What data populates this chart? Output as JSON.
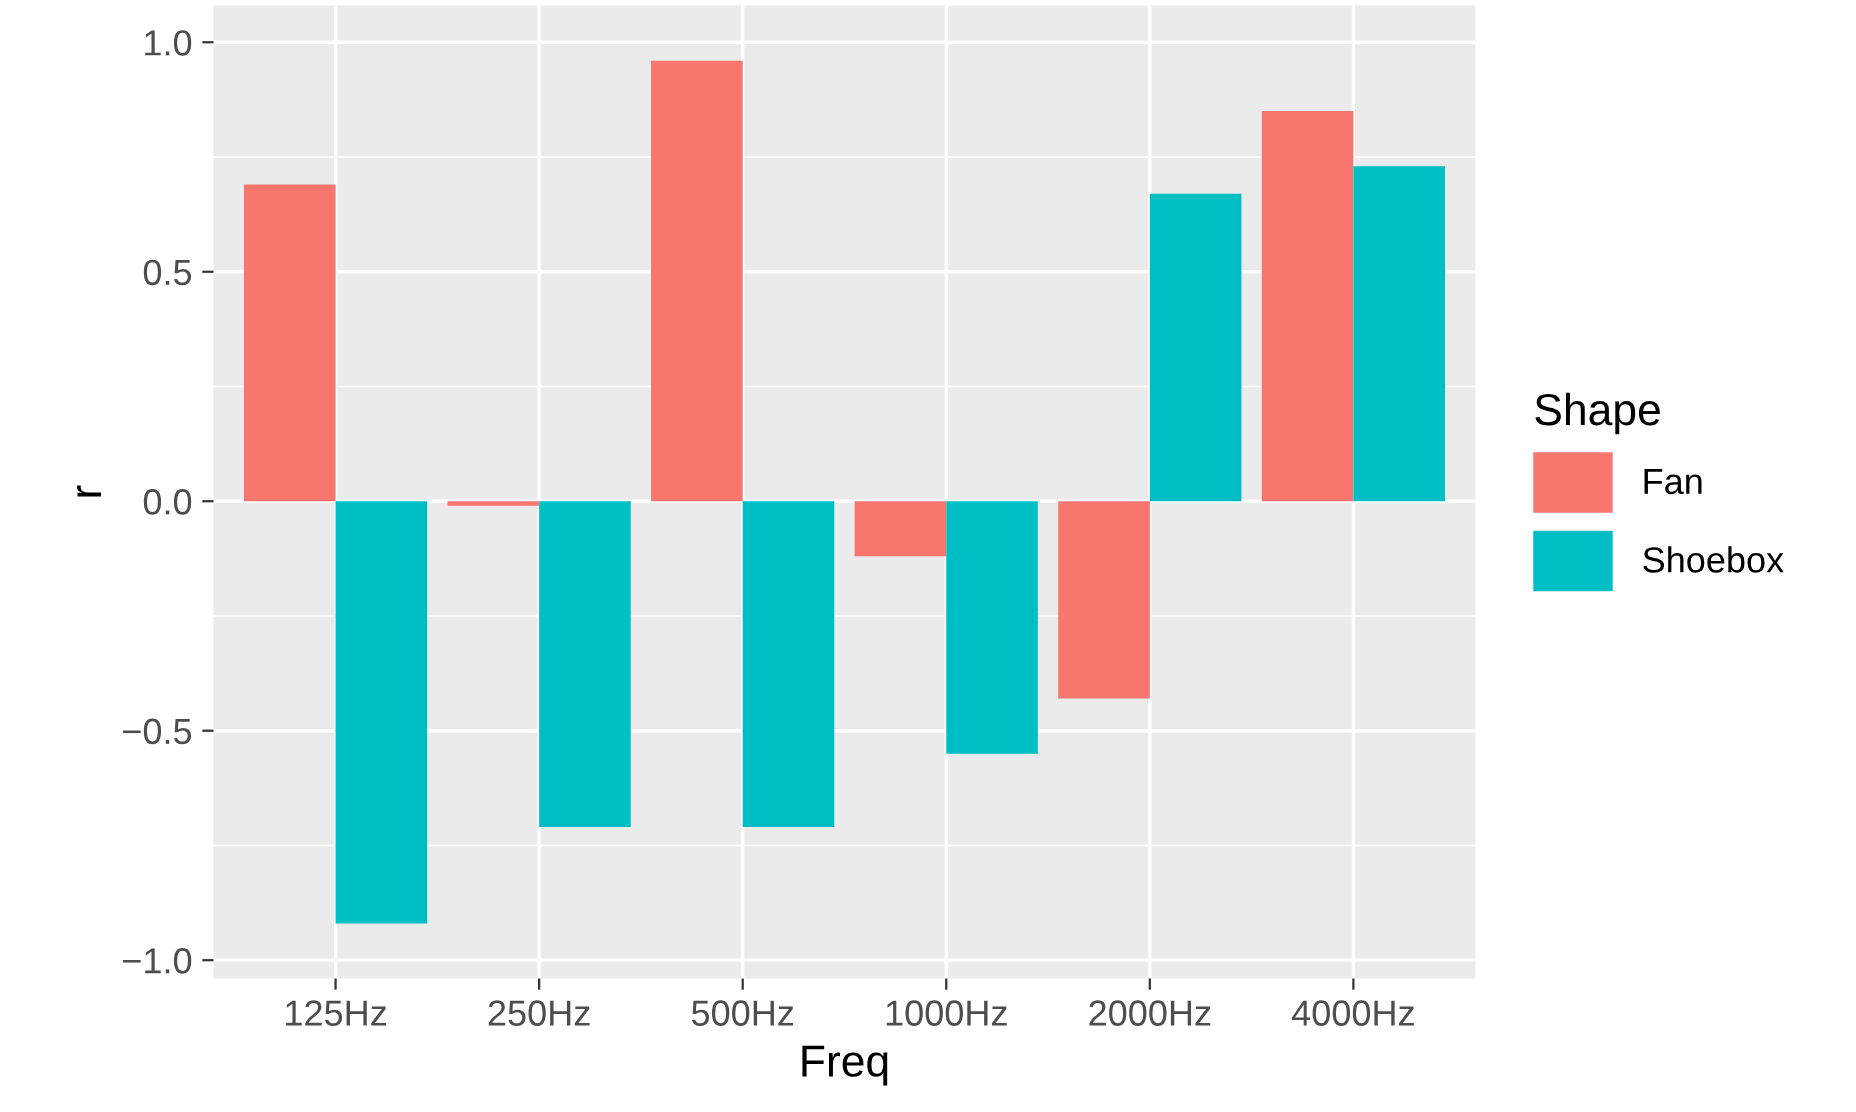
{
  "chart_data": {
    "type": "bar",
    "xlabel": "Freq",
    "ylabel": "r",
    "legend_title": "Shape",
    "categories": [
      "125Hz",
      "250Hz",
      "500Hz",
      "1000Hz",
      "2000Hz",
      "4000Hz"
    ],
    "series": [
      {
        "name": "Fan",
        "color": "#f8766d",
        "values": [
          0.69,
          -0.01,
          0.96,
          -0.12,
          -0.43,
          0.85
        ]
      },
      {
        "name": "Shoebox",
        "color": "#00bfc4",
        "values": [
          -0.92,
          -0.71,
          -0.71,
          -0.55,
          0.67,
          0.73
        ]
      }
    ],
    "ylim": [
      -1.04,
      1.08
    ],
    "yticks": [
      {
        "value": -1.0,
        "label": "−1.0"
      },
      {
        "value": -0.5,
        "label": "−0.5"
      },
      {
        "value": 0.0,
        "label": "0.0"
      },
      {
        "value": 0.5,
        "label": "0.5"
      },
      {
        "value": 1.0,
        "label": "1.0"
      }
    ],
    "grid": true,
    "legend": "right"
  }
}
